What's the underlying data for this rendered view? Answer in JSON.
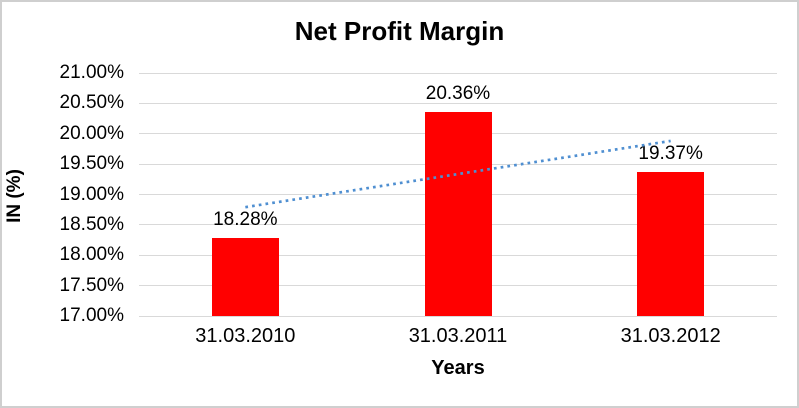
{
  "chart_data": {
    "type": "bar",
    "title": "Net Profit Margin",
    "xlabel": "Years",
    "ylabel": "IN (%)",
    "categories": [
      "31.03.2010",
      "31.03.2011",
      "31.03.2012"
    ],
    "values": [
      18.28,
      20.36,
      19.37
    ],
    "data_labels": [
      "18.28%",
      "20.36%",
      "19.37%"
    ],
    "ylim": [
      17,
      21
    ],
    "ytick_values": [
      21,
      20.5,
      20,
      19.5,
      19,
      18.5,
      18,
      17.5,
      17
    ],
    "ytick_labels": [
      "21.00%",
      "20.50%",
      "20.00%",
      "19.50%",
      "19.00%",
      "18.50%",
      "18.00%",
      "17.50%",
      "17.00%"
    ],
    "grid": true,
    "legend": "none",
    "colors": {
      "bar": "#ff0000",
      "trendline": "#4f8fd1",
      "gridline": "#d9d9d9",
      "text": "#000000",
      "border": "#cfcfcf",
      "background": "#ffffff"
    },
    "trendline": {
      "kind": "linear",
      "style": "dotted"
    }
  }
}
